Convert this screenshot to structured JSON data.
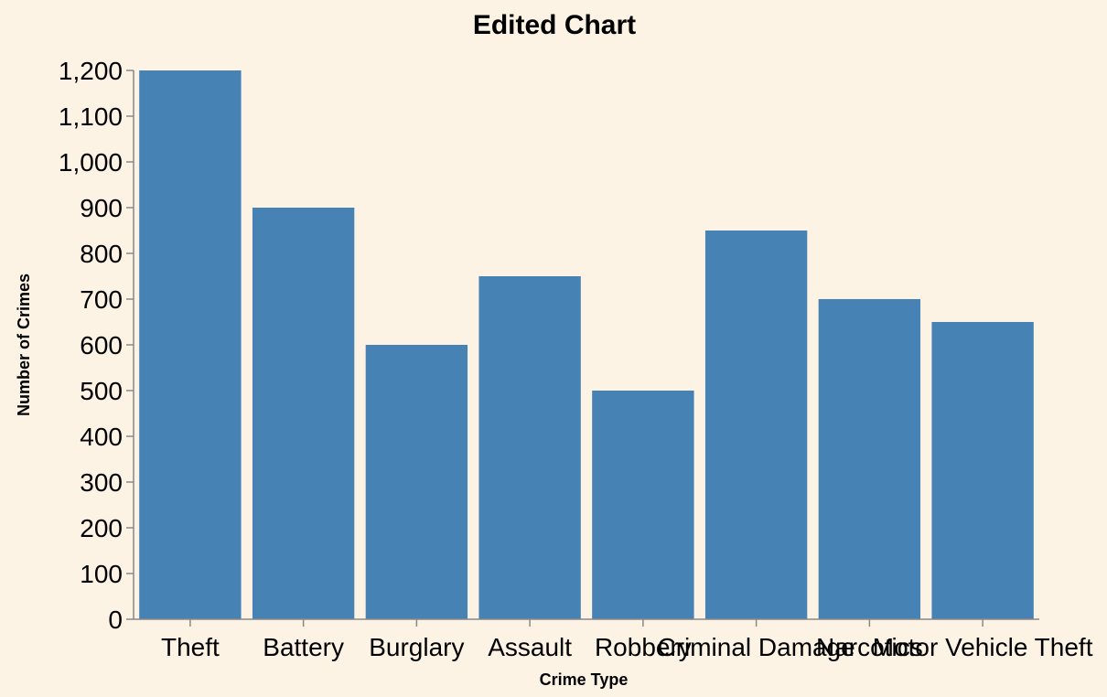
{
  "chart_data": {
    "type": "bar",
    "title": "Edited Chart",
    "xlabel": "Crime Type",
    "ylabel": "Number of Crimes",
    "categories": [
      "Theft",
      "Battery",
      "Burglary",
      "Assault",
      "Robbery",
      "Criminal Damage",
      "Narcotics",
      "Motor Vehicle Theft"
    ],
    "values": [
      1200,
      900,
      600,
      750,
      500,
      850,
      700,
      650
    ],
    "ylim": [
      0,
      1200
    ],
    "yticks": [
      0,
      100,
      200,
      300,
      400,
      500,
      600,
      700,
      800,
      900,
      1000,
      1100,
      1200
    ],
    "ytick_labels": [
      "0",
      "100",
      "200",
      "300",
      "400",
      "500",
      "600",
      "700",
      "800",
      "900",
      "1,000",
      "1,100",
      "1,200"
    ],
    "grid": false,
    "colors": {
      "bar": "#4682b4",
      "axis": "#888888",
      "background": "#fdf3e5"
    }
  }
}
